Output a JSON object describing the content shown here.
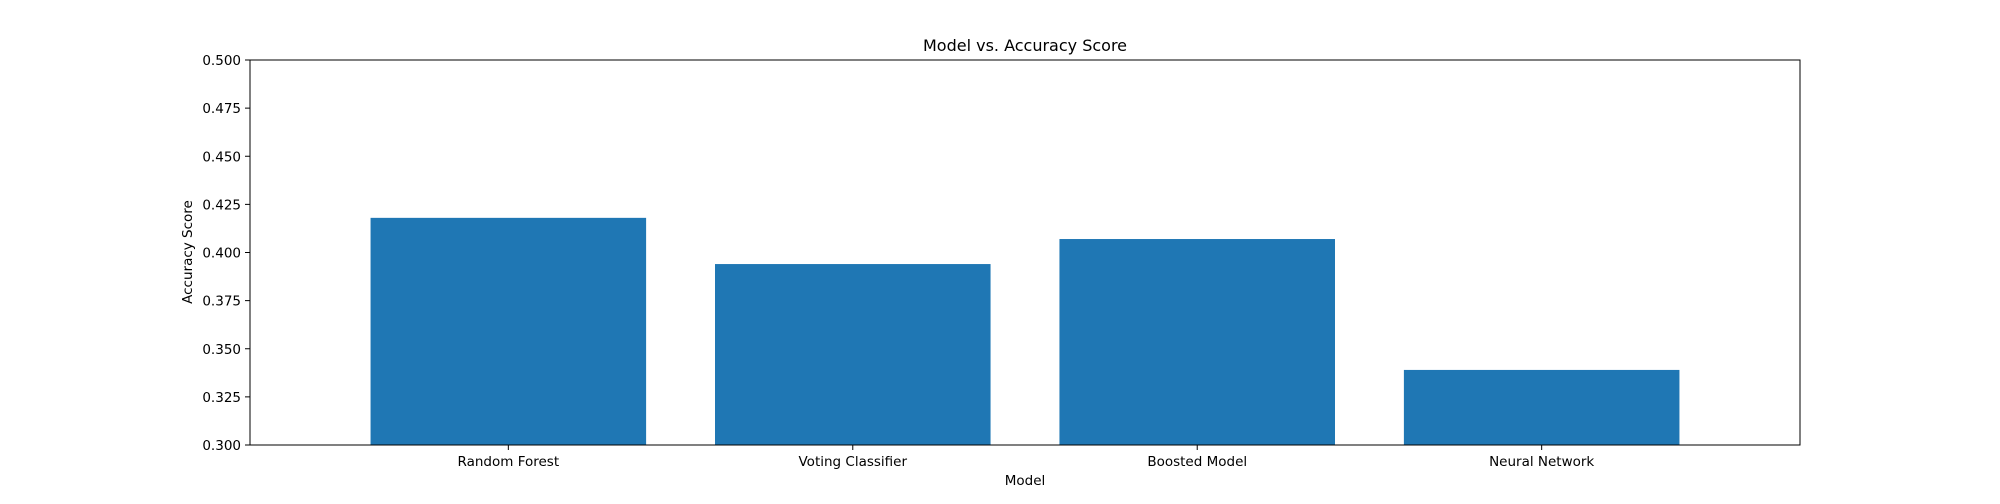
{
  "chart_data": {
    "type": "bar",
    "title": "Model vs. Accuracy Score",
    "xlabel": "Model",
    "ylabel": "Accuracy Score",
    "categories": [
      "Random Forest",
      "Voting Classifier",
      "Boosted Model",
      "Neural Network"
    ],
    "values": [
      0.418,
      0.394,
      0.407,
      0.339
    ],
    "ylim": [
      0.3,
      0.5
    ],
    "yticks": [
      "0.300",
      "0.325",
      "0.350",
      "0.375",
      "0.400",
      "0.425",
      "0.450",
      "0.475",
      "0.500"
    ],
    "bar_color": "#1f77b4",
    "grid": false,
    "legend": "none"
  }
}
